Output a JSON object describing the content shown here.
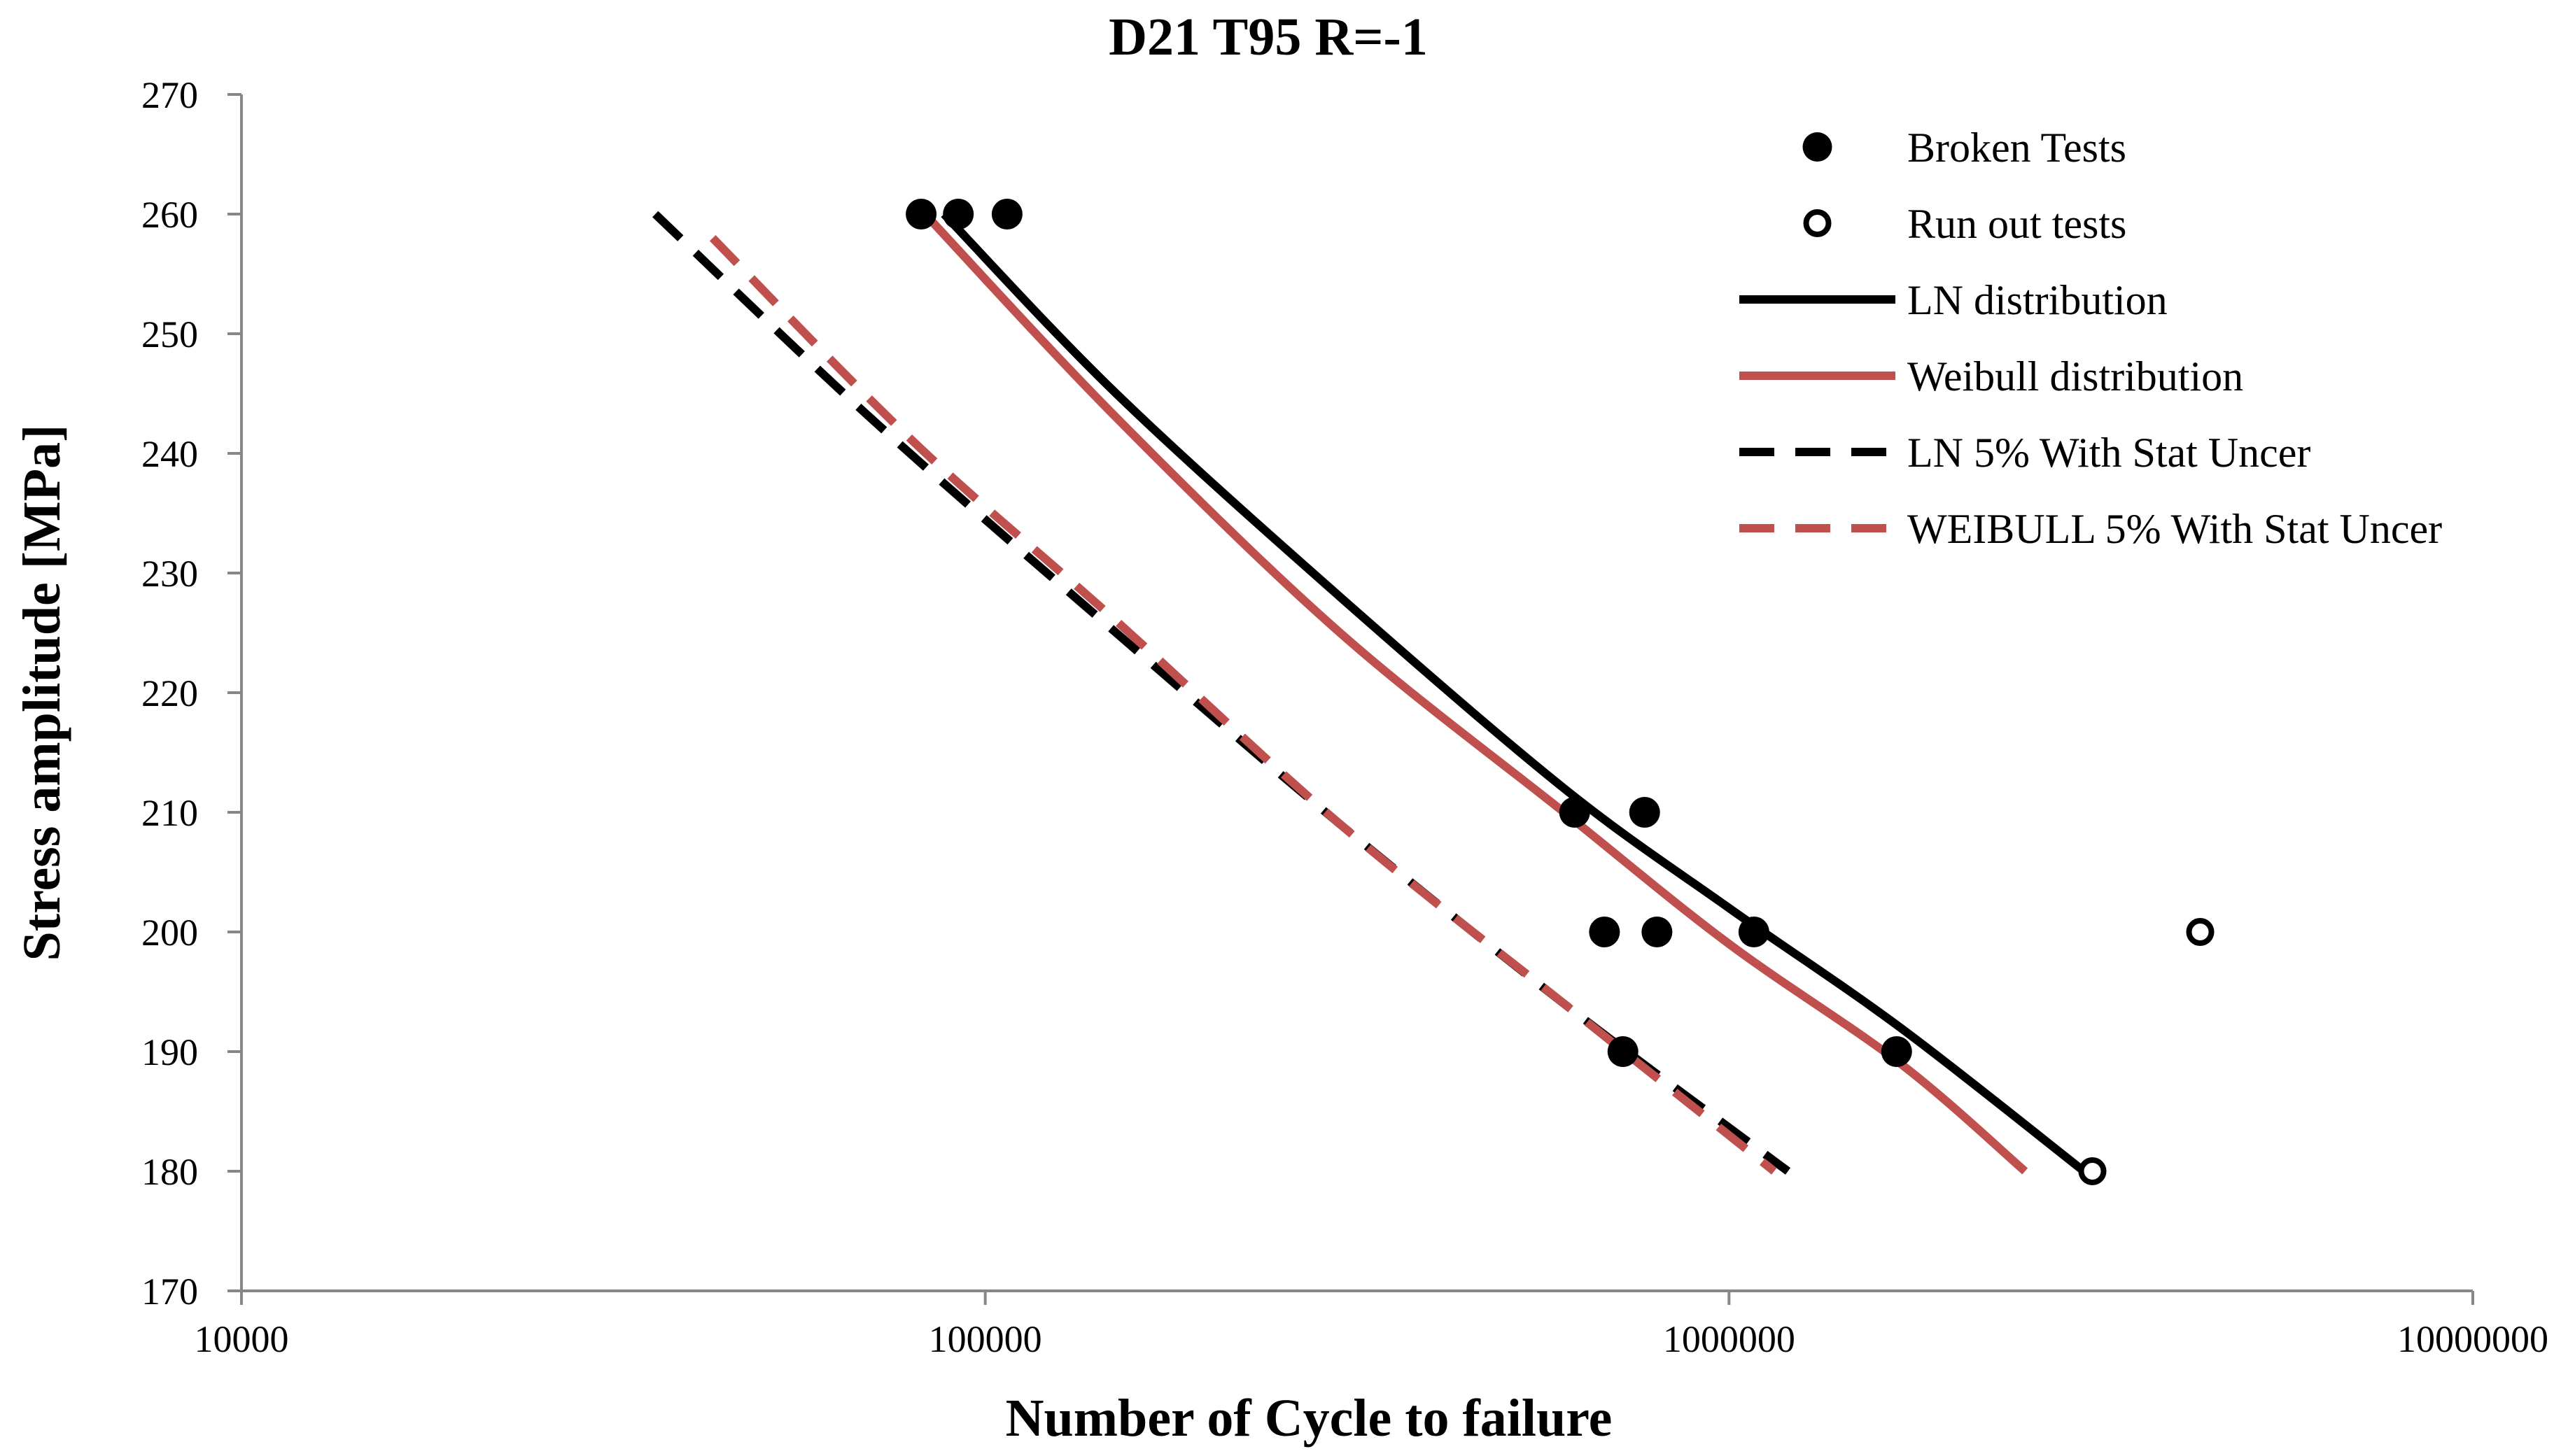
{
  "chart_data": {
    "type": "scatter",
    "title": "D21 T95 R=-1",
    "xlabel": "Number of Cycle to failure",
    "ylabel": "Stress amplitude [MPa]",
    "xscale": "log",
    "xlim": [
      10000,
      10000000
    ],
    "ylim": [
      170,
      270
    ],
    "xticks": [
      "10000",
      "100000",
      "1000000",
      "10000000"
    ],
    "yticks": [
      "170",
      "180",
      "190",
      "200",
      "210",
      "220",
      "230",
      "240",
      "250",
      "260",
      "270"
    ],
    "grid": false,
    "legend_position": "top-right",
    "colors": {
      "black": "#000000",
      "red": "#c0504d"
    },
    "series": [
      {
        "name": "Broken Tests",
        "kind": "points",
        "marker": "filled-circle",
        "color": "#000000",
        "points": [
          {
            "x": 82000,
            "y": 260
          },
          {
            "x": 92000,
            "y": 260
          },
          {
            "x": 107000,
            "y": 260
          },
          {
            "x": 620000,
            "y": 210
          },
          {
            "x": 770000,
            "y": 210
          },
          {
            "x": 680000,
            "y": 200
          },
          {
            "x": 800000,
            "y": 200
          },
          {
            "x": 1080000,
            "y": 200
          },
          {
            "x": 720000,
            "y": 190
          },
          {
            "x": 1680000,
            "y": 190
          }
        ]
      },
      {
        "name": "Run out tests",
        "kind": "points",
        "marker": "open-circle",
        "color": "#000000",
        "points": [
          {
            "x": 3080000,
            "y": 180
          },
          {
            "x": 4300000,
            "y": 200
          }
        ]
      },
      {
        "name": "LN distribution",
        "kind": "line",
        "dash": "solid",
        "color": "#000000",
        "points": [
          {
            "x": 88000,
            "y": 260
          },
          {
            "x": 150000,
            "y": 245
          },
          {
            "x": 300000,
            "y": 228
          },
          {
            "x": 600000,
            "y": 212
          },
          {
            "x": 1000000,
            "y": 202
          },
          {
            "x": 1700000,
            "y": 192
          },
          {
            "x": 3000000,
            "y": 180
          }
        ]
      },
      {
        "name": "Weibull distribution",
        "kind": "line",
        "dash": "solid",
        "color": "#c0504d",
        "points": [
          {
            "x": 83000,
            "y": 260
          },
          {
            "x": 150000,
            "y": 243
          },
          {
            "x": 300000,
            "y": 225
          },
          {
            "x": 600000,
            "y": 210
          },
          {
            "x": 1000000,
            "y": 199
          },
          {
            "x": 1700000,
            "y": 189
          },
          {
            "x": 2500000,
            "y": 180
          }
        ]
      },
      {
        "name": "LN 5% With Stat Uncer",
        "kind": "line",
        "dash": "dashed",
        "color": "#000000",
        "points": [
          {
            "x": 36000,
            "y": 260
          },
          {
            "x": 70000,
            "y": 243
          },
          {
            "x": 150000,
            "y": 225
          },
          {
            "x": 300000,
            "y": 209
          },
          {
            "x": 600000,
            "y": 194
          },
          {
            "x": 1200000,
            "y": 180
          }
        ]
      },
      {
        "name": "WEIBULL 5% With Stat Uncer",
        "kind": "line",
        "dash": "dashed",
        "color": "#c0504d",
        "points": [
          {
            "x": 43000,
            "y": 258
          },
          {
            "x": 80000,
            "y": 241
          },
          {
            "x": 150000,
            "y": 226
          },
          {
            "x": 300000,
            "y": 209
          },
          {
            "x": 600000,
            "y": 194
          },
          {
            "x": 1150000,
            "y": 180
          }
        ]
      }
    ]
  }
}
